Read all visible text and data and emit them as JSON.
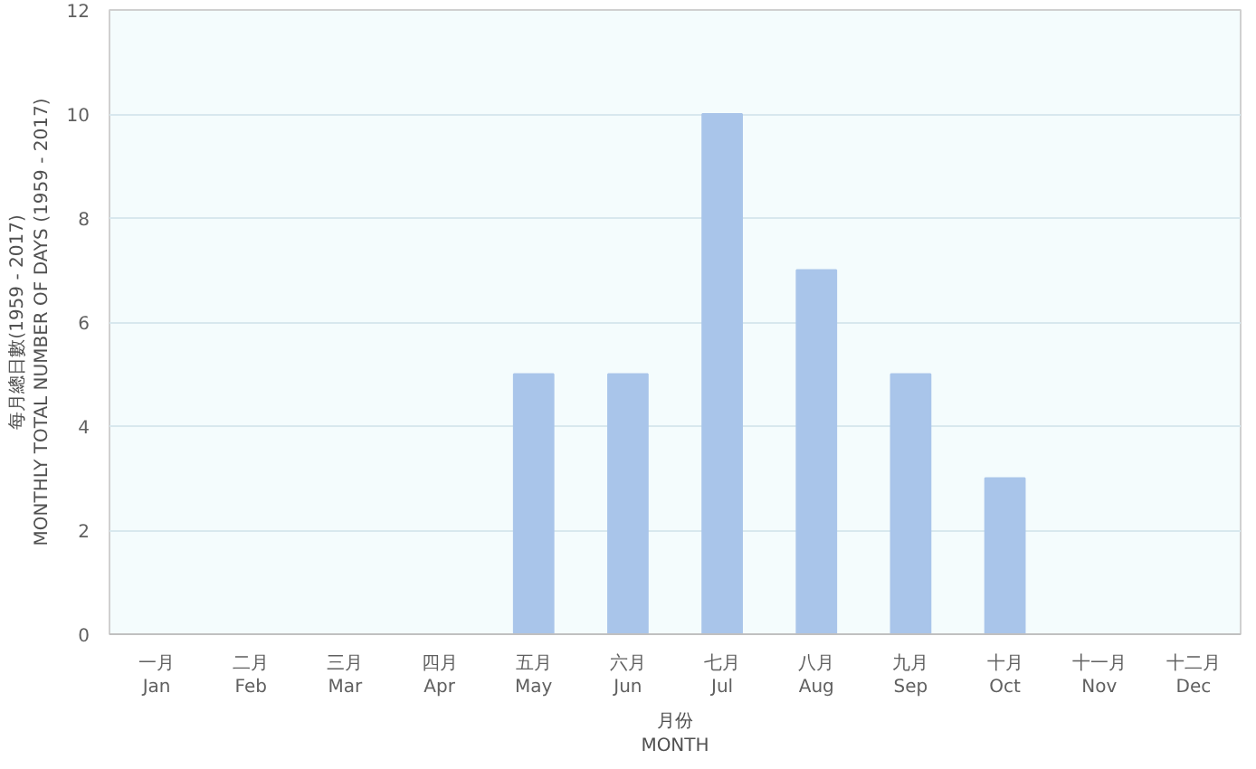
{
  "chart_data": {
    "type": "bar",
    "categories": [
      "一月\nJan",
      "二月\nFeb",
      "三月\nMar",
      "四月\nApr",
      "五月\nMay",
      "六月\nJun",
      "七月\nJul",
      "八月\nAug",
      "九月\nSep",
      "十月\nOct",
      "十一月\nNov",
      "十二月\nDec"
    ],
    "values": [
      0,
      0,
      0,
      0,
      5,
      5,
      10,
      7,
      5,
      3,
      0,
      0
    ],
    "color": "#a9c5ea",
    "xlabel": "月份\nMONTH",
    "ylabel": "每月總日數(1959 - 2017)\nMONTHLY TOTAL NUMBER OF DAYS (1959 - 2017)",
    "ylim": [
      0,
      12
    ],
    "yticks": [
      0,
      2,
      4,
      6,
      8,
      10,
      12
    ],
    "grid": "y"
  }
}
